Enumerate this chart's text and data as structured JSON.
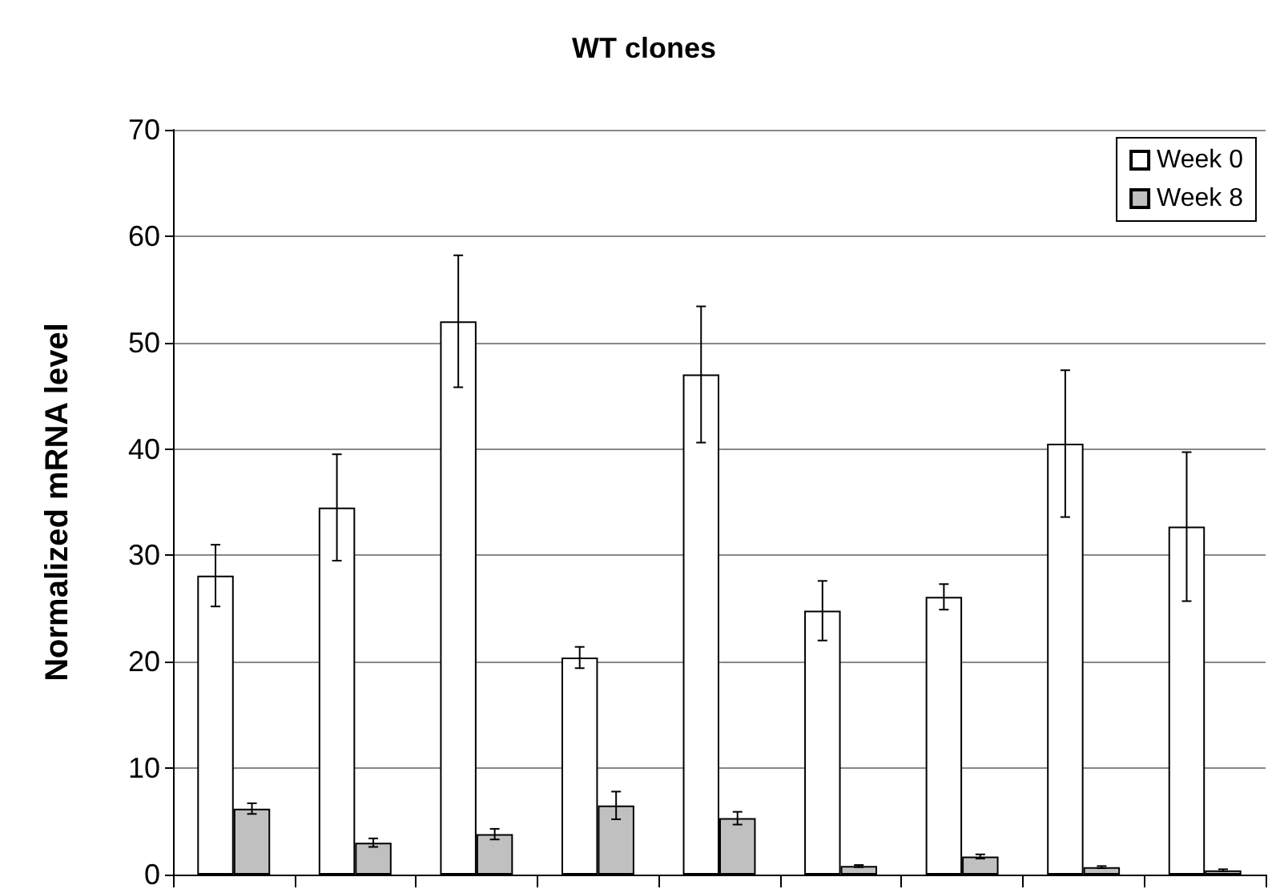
{
  "chart_data": {
    "type": "bar",
    "title": "WT clones",
    "ylabel": "Normalized mRNA level",
    "categories": [
      null,
      null,
      null,
      null,
      null,
      null,
      null,
      null,
      null
    ],
    "series": [
      {
        "name": "Week 0",
        "color": "#ffffff",
        "values": [
          28.1,
          34.5,
          52,
          20.4,
          47,
          24.8,
          26.1,
          40.5,
          32.7
        ],
        "errors": [
          2.9,
          5,
          6.2,
          1,
          6.4,
          2.8,
          1.2,
          6.9,
          7
        ]
      },
      {
        "name": "Week 8",
        "color": "#c0c0c0",
        "values": [
          6.2,
          3,
          3.8,
          6.5,
          5.3,
          0.8,
          1.7,
          0.7,
          0.4
        ],
        "errors": [
          0.5,
          0.4,
          0.5,
          1.3,
          0.6,
          0.1,
          0.2,
          0.1,
          0.1
        ]
      }
    ],
    "ylim": [
      0,
      70
    ],
    "yticks": [
      0,
      10,
      20,
      30,
      40,
      50,
      60,
      70
    ],
    "grid": "y",
    "legend": "top right"
  }
}
